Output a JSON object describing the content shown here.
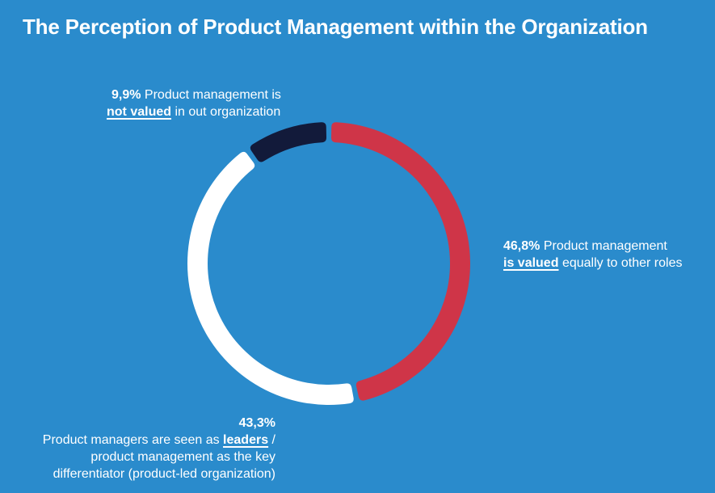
{
  "title": "The Perception of Product Management within the Organization",
  "chart_data": {
    "type": "pie",
    "variant": "donut",
    "title": "The Perception of Product Management within the Organization",
    "start": "top",
    "direction": "clockwise",
    "series": [
      {
        "name": "Product management is valued equally to other roles",
        "value": 46.8,
        "value_label": "46,8%",
        "color": "#cf3548",
        "text_before": "Product management",
        "emphasis": "is valued",
        "text_after": "equally to other roles"
      },
      {
        "name": "Product managers are seen as leaders / product management as the key differentiator (product-led organization)",
        "value": 43.3,
        "value_label": "43,3%",
        "color": "#ffffff",
        "text_before": "Product managers are seen as",
        "emphasis": "leaders",
        "text_after_line1": "/",
        "text_line2": "product management as the key",
        "text_line3": "differentiator (product-led organization)"
      },
      {
        "name": "Product management is not valued in out organization",
        "value": 9.9,
        "value_label": "9,9%",
        "color": "#121a3a",
        "text_before": "Product management is",
        "emphasis": "not valued",
        "text_after": "in out organization"
      }
    ],
    "legend": "inline-labels"
  },
  "colors": {
    "background": "#2a8bcc",
    "text": "#ffffff"
  }
}
